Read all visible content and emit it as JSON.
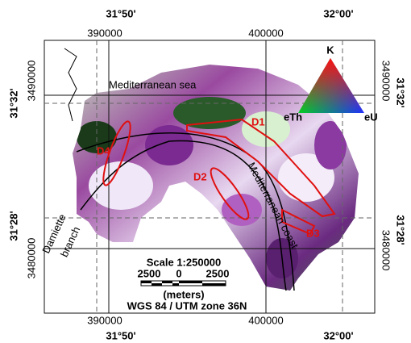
{
  "map": {
    "grid_labels": {
      "top": {
        "lon_left": "31°50'",
        "lon_right": "32°00'",
        "east_left": "390000",
        "east_right": "400000"
      },
      "bottom": {
        "east_left": "390000",
        "east_right": "400000",
        "lon_left": "31°50'",
        "lon_right": "32°00'"
      },
      "left": {
        "lat_top": "31°32'",
        "north_top": "3490000",
        "lat_bottom": "31°28'",
        "north_bottom": "3480000"
      },
      "right": {
        "north_top": "3490000",
        "lat_top": "31°32'",
        "north_bottom": "3480000",
        "lat_bottom": "31°28'"
      }
    },
    "labels": {
      "sea": "Mediterranean sea",
      "branch_1": "Damiette",
      "branch_2": "branch",
      "coast": "Mediterranean coast",
      "zones": [
        "D1",
        "D2",
        "D3",
        "D4"
      ]
    },
    "legend": {
      "top": "K",
      "left": "eTh",
      "right": "eU"
    },
    "scale_bar": {
      "title": "Scale 1:250000",
      "ticks": [
        "2500",
        "0",
        "2500"
      ],
      "unit": "(meters)",
      "projection": "WGS 84 / UTM zone 36N"
    }
  }
}
